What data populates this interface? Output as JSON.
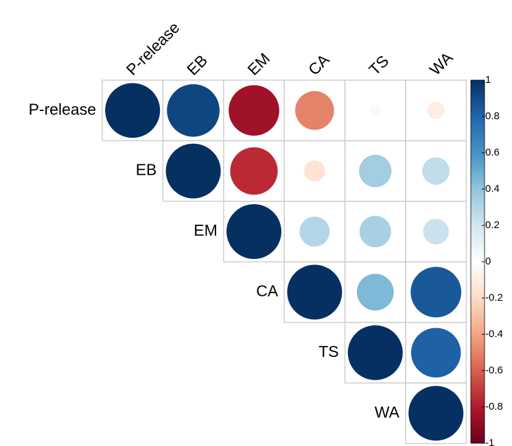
{
  "chart_data": {
    "type": "corrplot",
    "variables": [
      "P-release",
      "EB",
      "EM",
      "CA",
      "TS",
      "WA"
    ],
    "values": [
      [
        1,
        0.92,
        -0.85,
        -0.5,
        0.04,
        -0.1
      ],
      [
        null,
        1,
        -0.75,
        -0.15,
        0.35,
        0.25
      ],
      [
        null,
        null,
        1,
        0.3,
        0.33,
        0.22
      ],
      [
        null,
        null,
        null,
        1,
        0.45,
        0.85
      ],
      [
        null,
        null,
        null,
        null,
        1,
        0.82
      ],
      [
        null,
        null,
        null,
        null,
        null,
        1
      ]
    ],
    "palette": [
      "#67001F",
      "#B2182B",
      "#D6604D",
      "#F4A582",
      "#FDDBC7",
      "#FFFFFF",
      "#D1E5F0",
      "#92C5DE",
      "#4393C3",
      "#2166AC",
      "#053061"
    ],
    "clim": [
      -1,
      1
    ],
    "colorbar_ticks": [
      1,
      0.8,
      0.6,
      0.4,
      0.2,
      0,
      -0.2,
      -0.4,
      -0.6,
      -0.8,
      -1
    ]
  }
}
